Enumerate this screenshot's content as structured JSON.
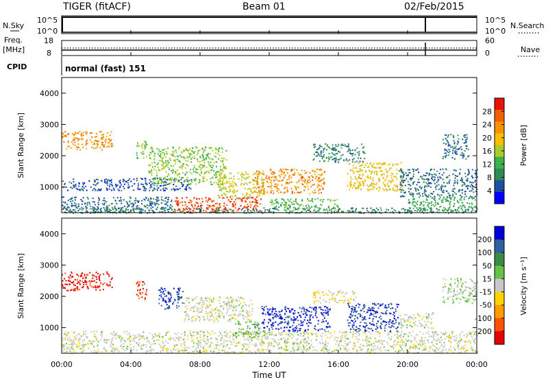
{
  "header": {
    "station": "TIGER (fitACF)",
    "beam": "Beam 01",
    "date": "02/Feb/2015"
  },
  "panels": {
    "nsky": {
      "label": "N.Sky",
      "ticks": [
        "10^5",
        "10^0"
      ],
      "right_label": "N.Search",
      "right_ticks": [
        "10^5",
        "10^0"
      ]
    },
    "freq": {
      "label_line1": "Freq.",
      "label_line2": "[MHz]",
      "ticks": [
        "18",
        "8"
      ],
      "right_label": "Nave",
      "right_ticks": [
        "60",
        "0"
      ]
    },
    "cpid": {
      "label": "CPID",
      "value": "normal (fast) 151"
    }
  },
  "colors": {
    "power": [
      "#0000ff",
      "#1f50a0",
      "#2f8a57",
      "#3cb34a",
      "#aacb2a",
      "#f6c000",
      "#f79300",
      "#f45f00",
      "#e81600"
    ],
    "velocity": [
      "#0000d6",
      "#2f5f9f",
      "#3a8b48",
      "#66c144",
      "#c8c8c8",
      "#ffd400",
      "#ff9c00",
      "#ff5200",
      "#e60000"
    ],
    "ground_scatter": "#bcbcbc"
  },
  "chart_data": [
    {
      "type": "heatmap",
      "name": "power",
      "ylabel": "Slant Range [km]",
      "yticks": [
        "4000",
        "3000",
        "2000",
        "1000"
      ],
      "ylim": [
        180,
        4500
      ],
      "xlim": [
        0,
        24
      ],
      "colorbar_label": "Power [dB]",
      "colorbar_ticks": [
        "28",
        "24",
        "20",
        "16",
        "12",
        "8",
        "4"
      ],
      "colorbar_range": [
        0,
        30
      ],
      "regions": [
        {
          "t0": 0.0,
          "t1": 2.9,
          "r0": 2200,
          "r1": 2800,
          "value": 22
        },
        {
          "t0": 0.0,
          "t1": 6.5,
          "r0": 180,
          "r1": 700,
          "value": 6
        },
        {
          "t0": 0.0,
          "t1": 24.0,
          "r0": 180,
          "r1": 350,
          "value": 8
        },
        {
          "t0": 0.0,
          "t1": 7.5,
          "r0": 900,
          "r1": 1300,
          "value": 5
        },
        {
          "t0": 4.3,
          "t1": 4.9,
          "r0": 1900,
          "r1": 2500,
          "value": 14
        },
        {
          "t0": 5.0,
          "t1": 9.5,
          "r0": 1100,
          "r1": 2300,
          "value": 14
        },
        {
          "t0": 6.5,
          "t1": 11.5,
          "r0": 200,
          "r1": 700,
          "value": 26
        },
        {
          "t0": 9.0,
          "t1": 11.7,
          "r0": 700,
          "r1": 1500,
          "value": 16
        },
        {
          "t0": 11.0,
          "t1": 15.2,
          "r0": 800,
          "r1": 1600,
          "value": 22
        },
        {
          "t0": 12.0,
          "t1": 16.0,
          "r0": 250,
          "r1": 650,
          "value": 12
        },
        {
          "t0": 14.5,
          "t1": 17.5,
          "r0": 1800,
          "r1": 2400,
          "value": 8
        },
        {
          "t0": 16.5,
          "t1": 19.7,
          "r0": 900,
          "r1": 1800,
          "value": 18
        },
        {
          "t0": 19.5,
          "t1": 24.0,
          "r0": 700,
          "r1": 1600,
          "value": 6
        },
        {
          "t0": 20.0,
          "t1": 24.0,
          "r0": 200,
          "r1": 700,
          "value": 10
        },
        {
          "t0": 22.0,
          "t1": 23.5,
          "r0": 1900,
          "r1": 2700,
          "value": 6
        }
      ]
    },
    {
      "type": "heatmap",
      "name": "velocity",
      "ylabel": "Slant Range [km]",
      "yticks": [
        "4000",
        "3000",
        "2000",
        "1000"
      ],
      "ylim": [
        180,
        4500
      ],
      "xlim": [
        0,
        24
      ],
      "colorbar_label": "Velocity [m s⁻¹]",
      "colorbar_ticks": [
        "200",
        "100",
        "50",
        "15",
        "-15",
        "-50",
        "-100",
        "-200"
      ],
      "colorbar_range": [
        -250,
        250
      ],
      "regions": [
        {
          "t0": 0.0,
          "t1": 2.9,
          "r0": 2200,
          "r1": 2800,
          "value": -220
        },
        {
          "t0": 0.0,
          "t1": 24.0,
          "r0": 200,
          "r1": 900,
          "value": 0
        },
        {
          "t0": 4.3,
          "t1": 4.9,
          "r0": 1900,
          "r1": 2500,
          "value": -200
        },
        {
          "t0": 5.5,
          "t1": 7.0,
          "r0": 1600,
          "r1": 2300,
          "value": 180
        },
        {
          "t0": 7.0,
          "t1": 11.0,
          "r0": 1200,
          "r1": 2000,
          "value": 0
        },
        {
          "t0": 10.0,
          "t1": 11.5,
          "r0": 700,
          "r1": 1200,
          "value": 60
        },
        {
          "t0": 11.5,
          "t1": 15.5,
          "r0": 900,
          "r1": 1700,
          "value": 200
        },
        {
          "t0": 14.5,
          "t1": 17.0,
          "r0": 1800,
          "r1": 2200,
          "value": -40
        },
        {
          "t0": 16.5,
          "t1": 19.5,
          "r0": 900,
          "r1": 1800,
          "value": 190
        },
        {
          "t0": 19.5,
          "t1": 21.5,
          "r0": 1000,
          "r1": 1500,
          "value": 0
        },
        {
          "t0": 22.0,
          "t1": 24.0,
          "r0": 1800,
          "r1": 2600,
          "value": 30
        }
      ]
    }
  ],
  "xaxis": {
    "ticks": [
      "00:00",
      "04:00",
      "08:00",
      "12:00",
      "16:00",
      "20:00",
      "00:00"
    ],
    "label": "Time UT"
  }
}
